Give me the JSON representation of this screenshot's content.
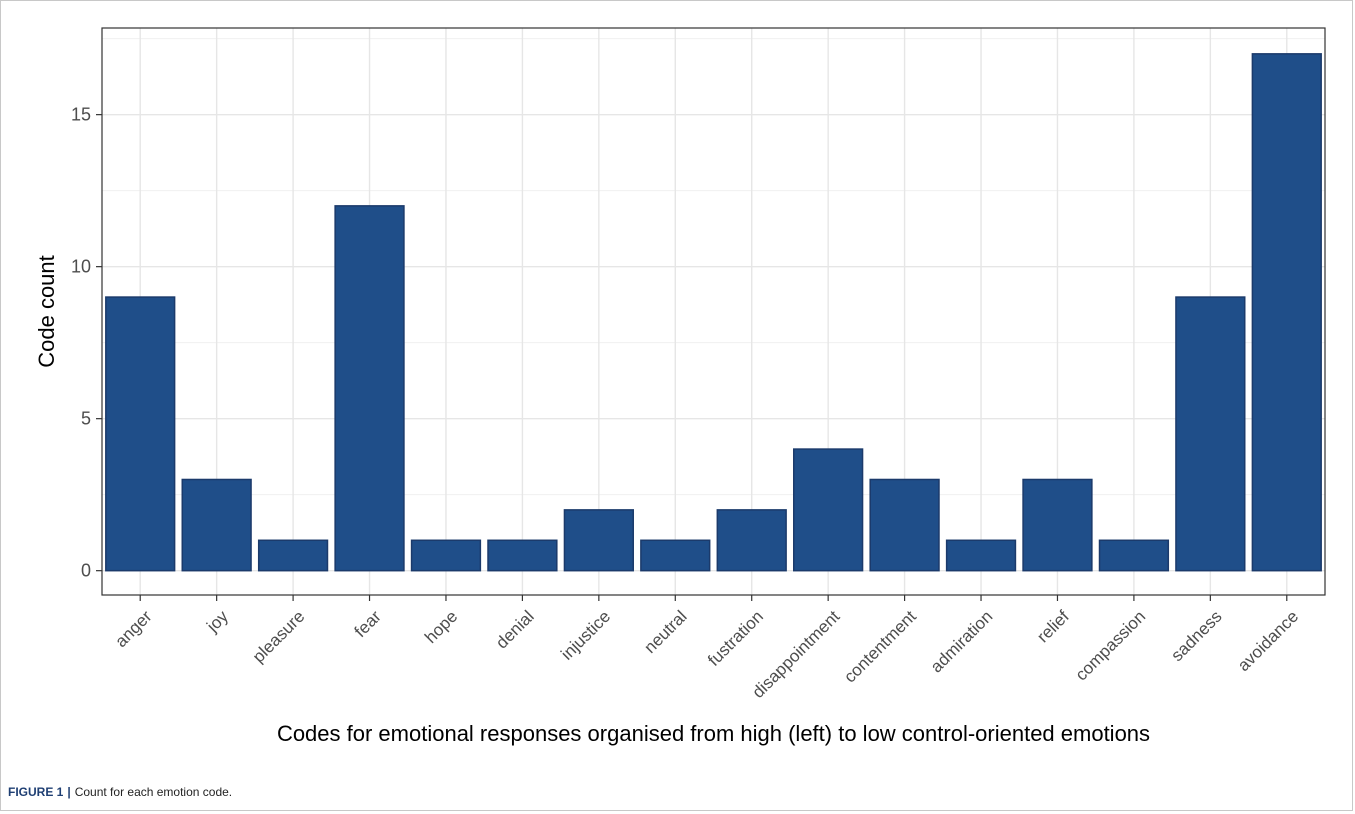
{
  "chart_data": {
    "type": "bar",
    "categories": [
      "anger",
      "joy",
      "pleasure",
      "fear",
      "hope",
      "denial",
      "injustice",
      "neutral",
      "fustration",
      "disappointment",
      "contentment",
      "admiration",
      "relief",
      "compassion",
      "sadness",
      "avoidance"
    ],
    "values": [
      9,
      3,
      1,
      12,
      1,
      1,
      2,
      1,
      2,
      4,
      3,
      1,
      3,
      1,
      9,
      17
    ],
    "xlabel": "Codes for emotional responses organised from high (left) to low control-oriented emotions",
    "ylabel": "Code count",
    "ylim": [
      -0.8,
      17.85
    ],
    "yticks": [
      0,
      5,
      10,
      15
    ],
    "grid": true,
    "bar_color": "#1f4e89",
    "bar_edge_color": "#1b3a6b"
  },
  "caption": {
    "label": "FIGURE 1",
    "separator": "|",
    "text": "Count for each emotion code."
  }
}
